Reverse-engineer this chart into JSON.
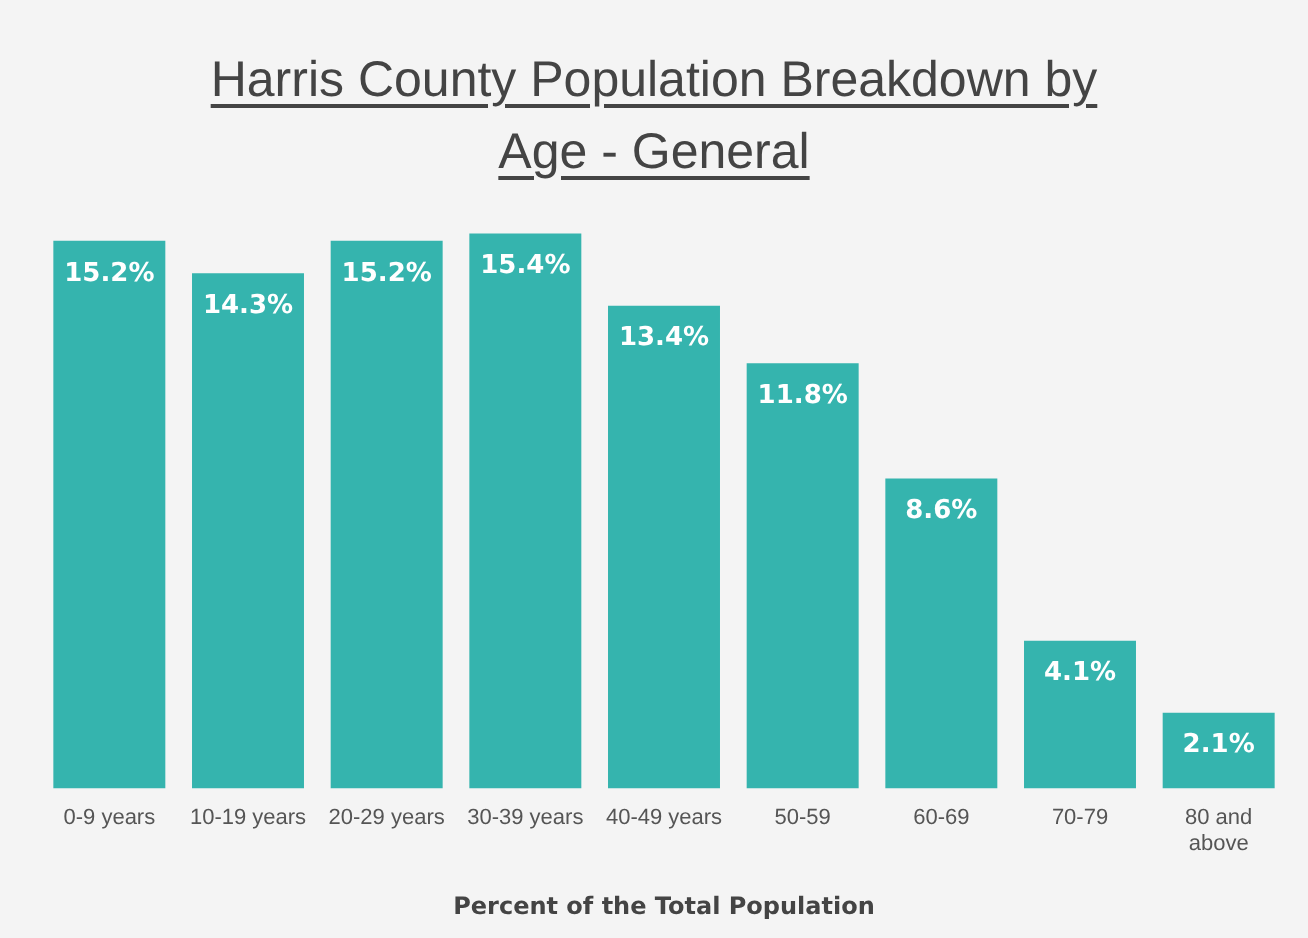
{
  "chart_data": {
    "type": "bar",
    "title": "Harris County Population Breakdown by Age - General",
    "xlabel": "Percent of the Total Population",
    "categories": [
      "0-9 years",
      "10-19 years",
      "20-29 years",
      "30-39 years",
      "40-49 years",
      "50-59",
      "60-69",
      "70-79",
      "80 and above"
    ],
    "values": [
      15.2,
      14.3,
      15.2,
      15.4,
      13.4,
      11.8,
      8.6,
      4.1,
      2.1
    ],
    "value_labels": [
      "15.2%",
      "14.3%",
      "15.2%",
      "15.4%",
      "13.4%",
      "11.8%",
      "8.6%",
      "4.1%",
      "2.1%"
    ],
    "color": "#35b4ae",
    "grid": false,
    "legend": false
  }
}
